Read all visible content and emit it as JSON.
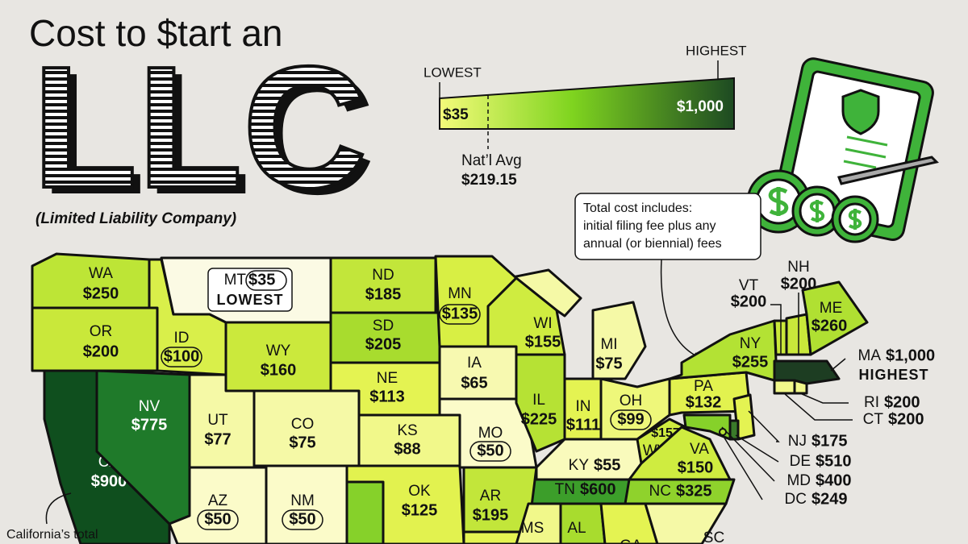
{
  "header": {
    "title": "Cost to $tart an",
    "big_title": "LLC",
    "subtitle": "(Limited Liability Company)"
  },
  "legend": {
    "lowest_label": "LOWEST",
    "highest_label": "HIGHEST",
    "low_value": "$35",
    "high_value": "$1,000",
    "average_label": "Nat’l Avg",
    "average_value": "$219.15",
    "gradient": [
      "#f4fb7a",
      "#7fd41f",
      "#1d4a22"
    ]
  },
  "note": {
    "lines": [
      "Total cost includes:",
      "initial filing fee plus any",
      "annual (or biennial) fees"
    ]
  },
  "footnote": "California’s total",
  "states": [
    {
      "code": "WA",
      "cost": "$250",
      "color": "#bde536"
    },
    {
      "code": "OR",
      "cost": "$200",
      "color": "#c9e83a"
    },
    {
      "code": "CA",
      "cost": "$900",
      "color": "#0f4f1e"
    },
    {
      "code": "NV",
      "cost": "$775",
      "color": "#1f7a2a"
    },
    {
      "code": "ID",
      "cost": "$100",
      "color": "#d9ef4a"
    },
    {
      "code": "MT",
      "cost": "$35",
      "color": "#fbfae4",
      "tag": "LOWEST"
    },
    {
      "code": "WY",
      "cost": "$160",
      "color": "#cbe93c"
    },
    {
      "code": "UT",
      "cost": "$77",
      "color": "#f5f9a6"
    },
    {
      "code": "CO",
      "cost": "$75",
      "color": "#f5f9a6"
    },
    {
      "code": "AZ",
      "cost": "$50",
      "color": "#fbfbc9"
    },
    {
      "code": "NM",
      "cost": "$50",
      "color": "#fbfbc9"
    },
    {
      "code": "ND",
      "cost": "$185",
      "color": "#c2e63a"
    },
    {
      "code": "SD",
      "cost": "$205",
      "color": "#a8dc2e"
    },
    {
      "code": "NE",
      "cost": "$113",
      "color": "#e4f352"
    },
    {
      "code": "KS",
      "cost": "$88",
      "color": "#f1f88a"
    },
    {
      "code": "OK",
      "cost": "$125",
      "color": "#e2f24f"
    },
    {
      "code": "MN",
      "cost": "$135",
      "color": "#d8ef44"
    },
    {
      "code": "IA",
      "cost": "$65",
      "color": "#f7f9b0"
    },
    {
      "code": "MO",
      "cost": "$50",
      "color": "#fbfbc9"
    },
    {
      "code": "WI",
      "cost": "$155",
      "color": "#cfec40"
    },
    {
      "code": "MI",
      "cost": "$75",
      "color": "#f5f9a6"
    },
    {
      "code": "IL",
      "cost": "$225",
      "color": "#b6e234"
    },
    {
      "code": "IN",
      "cost": "$111",
      "color": "#e4f352"
    },
    {
      "code": "OH",
      "cost": "$99",
      "color": "#eef77a"
    },
    {
      "code": "KY",
      "cost": "$55",
      "color": "#f9fabc"
    },
    {
      "code": "TN",
      "cost": "$600",
      "color": "#3c9e2a"
    },
    {
      "code": "WV",
      "cost": "$157",
      "color": "#cfec40"
    },
    {
      "code": "VA",
      "cost": "$150",
      "color": "#cfec40"
    },
    {
      "code": "NC",
      "cost": "$325",
      "color": "#8fd22c"
    },
    {
      "code": "AR",
      "cost": "$195",
      "color": "#c2e63a"
    },
    {
      "code": "PA",
      "cost": "$132",
      "color": "#e2f24f"
    },
    {
      "code": "NY",
      "cost": "$255",
      "color": "#b3e234"
    },
    {
      "code": "VT",
      "cost": "$200",
      "color": "#c9e83a"
    },
    {
      "code": "NH",
      "cost": "$200",
      "color": "#c9e83a"
    },
    {
      "code": "ME",
      "cost": "$260",
      "color": "#b0e032"
    },
    {
      "code": "MA",
      "cost": "$1,000",
      "color": "#1d3d22",
      "tag": "HIGHEST"
    },
    {
      "code": "RI",
      "cost": "$200",
      "color": "#f1f88a"
    },
    {
      "code": "CT",
      "cost": "$200",
      "color": "#f1f88a"
    },
    {
      "code": "NJ",
      "cost": "$175",
      "color": "#e4f352"
    },
    {
      "code": "DE",
      "cost": "$510",
      "color": "#3a7a2a"
    },
    {
      "code": "MD",
      "cost": "$400",
      "color": "#86d12a"
    },
    {
      "code": "DC",
      "cost": "$249",
      "color": "#b6e234"
    },
    {
      "code": "MS",
      "color": "#f1f88a"
    },
    {
      "code": "AL",
      "color": "#a8dc2e"
    },
    {
      "code": "GA",
      "color": "#e4f352"
    },
    {
      "code": "SC",
      "color": "#f5f9a6"
    }
  ]
}
